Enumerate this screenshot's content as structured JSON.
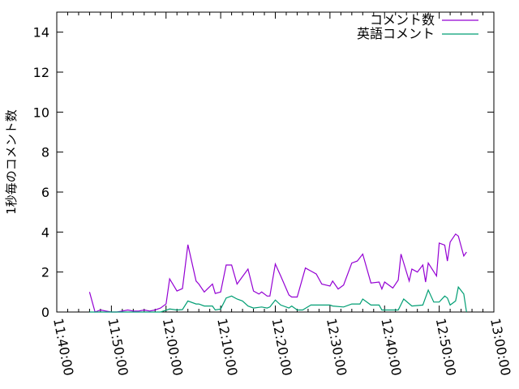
{
  "chart_data": {
    "type": "line",
    "title": "",
    "xlabel": "",
    "ylabel": "1秒毎のコメント数",
    "xlim": [
      "11:40:00",
      "13:00:00"
    ],
    "ylim": [
      0,
      15
    ],
    "xticks": [
      "11:40:00",
      "11:50:00",
      "12:00:00",
      "12:10:00",
      "12:20:00",
      "12:30:00",
      "12:40:00",
      "12:50:00",
      "13:00:00"
    ],
    "yticks": [
      "0",
      "2",
      "4",
      "6",
      "8",
      "10",
      "12",
      "14"
    ],
    "yticks_values": [
      0,
      2,
      4,
      6,
      8,
      10,
      12,
      14
    ],
    "grid": false,
    "legend_position": "top-right",
    "series": [
      {
        "name": "コメント数",
        "color": "#9400d3",
        "points": [
          [
            "11:46:00",
            1.0
          ],
          [
            "11:47:00",
            0.0
          ],
          [
            "11:48:00",
            0.1
          ],
          [
            "11:49:00",
            0.05
          ],
          [
            "11:50:00",
            0.0
          ],
          [
            "11:51:00",
            0.0
          ],
          [
            "11:52:00",
            0.05
          ],
          [
            "11:53:00",
            0.1
          ],
          [
            "11:54:00",
            0.05
          ],
          [
            "11:55:00",
            0.05
          ],
          [
            "11:56:00",
            0.1
          ],
          [
            "11:57:00",
            0.05
          ],
          [
            "11:58:00",
            0.1
          ],
          [
            "11:59:00",
            0.2
          ],
          [
            "12:00:00",
            0.4
          ],
          [
            "12:00:40",
            1.66
          ],
          [
            "12:02:00",
            1.05
          ],
          [
            "12:03:00",
            1.17
          ],
          [
            "12:04:00",
            3.37
          ],
          [
            "12:05:30",
            1.55
          ],
          [
            "12:06:00",
            1.4
          ],
          [
            "12:07:00",
            1.0
          ],
          [
            "12:08:30",
            1.4
          ],
          [
            "12:09:00",
            0.93
          ],
          [
            "12:10:00",
            1.0
          ],
          [
            "12:11:00",
            2.35
          ],
          [
            "12:12:00",
            2.35
          ],
          [
            "12:13:00",
            1.4
          ],
          [
            "12:15:00",
            2.15
          ],
          [
            "12:16:00",
            1.05
          ],
          [
            "12:17:00",
            0.9
          ],
          [
            "12:17:30",
            1.0
          ],
          [
            "12:18:30",
            0.8
          ],
          [
            "12:19:00",
            0.8
          ],
          [
            "12:20:00",
            2.4
          ],
          [
            "12:21:00",
            1.8
          ],
          [
            "12:22:30",
            0.85
          ],
          [
            "12:23:00",
            0.75
          ],
          [
            "12:24:00",
            0.75
          ],
          [
            "12:25:30",
            2.2
          ],
          [
            "12:26:30",
            2.05
          ],
          [
            "12:27:30",
            1.9
          ],
          [
            "12:28:30",
            1.4
          ],
          [
            "12:30:00",
            1.3
          ],
          [
            "12:30:30",
            1.55
          ],
          [
            "12:31:30",
            1.15
          ],
          [
            "12:32:30",
            1.35
          ],
          [
            "12:34:00",
            2.45
          ],
          [
            "12:35:00",
            2.55
          ],
          [
            "12:36:00",
            2.9
          ],
          [
            "12:37:30",
            1.45
          ],
          [
            "12:39:00",
            1.5
          ],
          [
            "12:39:30",
            1.15
          ],
          [
            "12:40:00",
            1.5
          ],
          [
            "12:41:30",
            1.2
          ],
          [
            "12:42:30",
            1.6
          ],
          [
            "12:43:00",
            2.9
          ],
          [
            "12:44:30",
            1.55
          ],
          [
            "12:45:00",
            2.15
          ],
          [
            "12:46:00",
            2.0
          ],
          [
            "12:47:00",
            2.35
          ],
          [
            "12:47:30",
            1.5
          ],
          [
            "12:48:00",
            2.45
          ],
          [
            "12:49:30",
            1.8
          ],
          [
            "12:50:00",
            3.45
          ],
          [
            "12:51:00",
            3.35
          ],
          [
            "12:51:30",
            2.55
          ],
          [
            "12:52:00",
            3.5
          ],
          [
            "12:53:00",
            3.9
          ],
          [
            "12:53:30",
            3.8
          ],
          [
            "12:54:30",
            2.8
          ],
          [
            "12:55:00",
            3.0
          ]
        ]
      },
      {
        "name": "英語コメント",
        "color": "#009e73",
        "points": [
          [
            "11:46:00",
            0.0
          ],
          [
            "11:59:00",
            0.0
          ],
          [
            "12:00:40",
            0.15
          ],
          [
            "12:02:00",
            0.1
          ],
          [
            "12:03:00",
            0.12
          ],
          [
            "12:04:00",
            0.55
          ],
          [
            "12:05:30",
            0.4
          ],
          [
            "12:06:00",
            0.4
          ],
          [
            "12:07:00",
            0.3
          ],
          [
            "12:08:30",
            0.3
          ],
          [
            "12:09:00",
            0.1
          ],
          [
            "12:10:00",
            0.15
          ],
          [
            "12:11:00",
            0.7
          ],
          [
            "12:12:00",
            0.8
          ],
          [
            "12:13:00",
            0.65
          ],
          [
            "12:14:00",
            0.55
          ],
          [
            "12:15:00",
            0.3
          ],
          [
            "12:16:00",
            0.2
          ],
          [
            "12:17:30",
            0.25
          ],
          [
            "12:18:30",
            0.2
          ],
          [
            "12:19:00",
            0.25
          ],
          [
            "12:20:00",
            0.6
          ],
          [
            "12:21:00",
            0.35
          ],
          [
            "12:22:30",
            0.2
          ],
          [
            "12:23:00",
            0.3
          ],
          [
            "12:24:00",
            0.1
          ],
          [
            "12:25:00",
            0.1
          ],
          [
            "12:26:30",
            0.35
          ],
          [
            "12:28:30",
            0.35
          ],
          [
            "12:30:00",
            0.35
          ],
          [
            "12:30:30",
            0.3
          ],
          [
            "12:32:30",
            0.25
          ],
          [
            "12:34:00",
            0.4
          ],
          [
            "12:35:30",
            0.4
          ],
          [
            "12:36:00",
            0.65
          ],
          [
            "12:37:30",
            0.35
          ],
          [
            "12:39:00",
            0.35
          ],
          [
            "12:39:30",
            0.1
          ],
          [
            "12:41:00",
            0.1
          ],
          [
            "12:42:30",
            0.1
          ],
          [
            "12:43:30",
            0.65
          ],
          [
            "12:45:00",
            0.3
          ],
          [
            "12:47:00",
            0.35
          ],
          [
            "12:48:00",
            1.1
          ],
          [
            "12:49:00",
            0.5
          ],
          [
            "12:50:00",
            0.5
          ],
          [
            "12:51:00",
            0.8
          ],
          [
            "12:51:30",
            0.7
          ],
          [
            "12:52:00",
            0.35
          ],
          [
            "12:53:00",
            0.55
          ],
          [
            "12:53:30",
            1.25
          ],
          [
            "12:54:30",
            0.9
          ],
          [
            "12:55:00",
            0.0
          ]
        ]
      }
    ]
  }
}
